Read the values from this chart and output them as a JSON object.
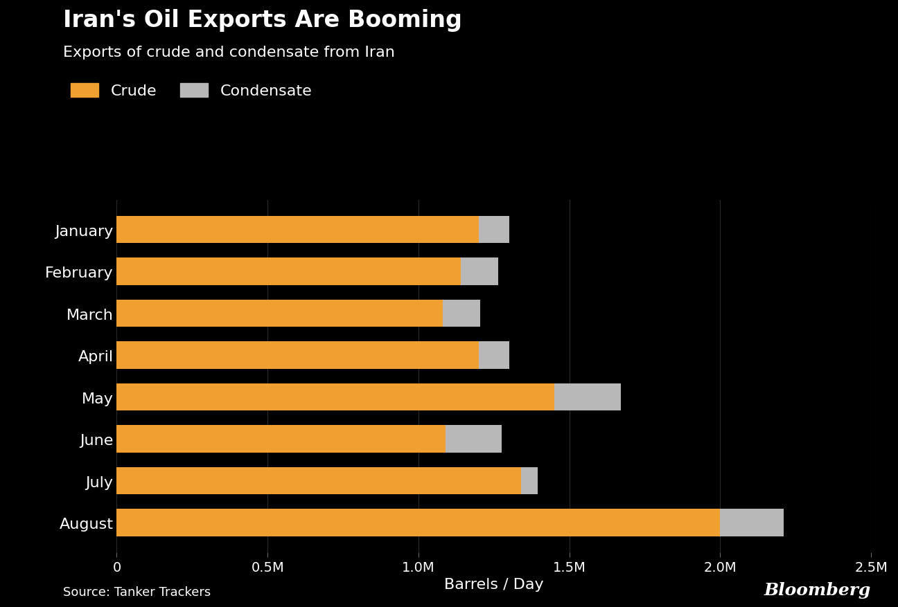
{
  "title": "Iran's Oil Exports Are Booming",
  "subtitle": "Exports of crude and condensate from Iran",
  "months": [
    "January",
    "February",
    "March",
    "April",
    "May",
    "June",
    "July",
    "August"
  ],
  "crude": [
    1200000,
    1140000,
    1080000,
    1200000,
    1450000,
    1090000,
    1340000,
    2000000
  ],
  "condensate": [
    100000,
    125000,
    125000,
    100000,
    220000,
    185000,
    55000,
    210000
  ],
  "crude_color": "#f0a030",
  "condensate_color": "#b8b8b8",
  "background_color": "#000000",
  "text_color": "#ffffff",
  "title_fontsize": 24,
  "subtitle_fontsize": 16,
  "label_fontsize": 16,
  "tick_fontsize": 14,
  "xlim": [
    0,
    2500000
  ],
  "xlabel": "Barrels / Day",
  "source_text": "Source: Tanker Trackers",
  "bloomberg_text": "Bloomberg"
}
